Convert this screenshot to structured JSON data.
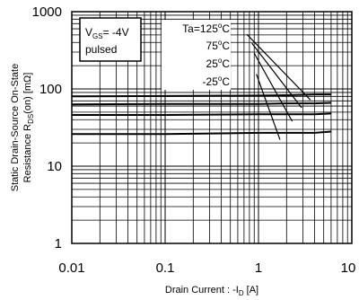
{
  "chart_data": {
    "type": "line",
    "x_scale": "log",
    "y_scale": "log",
    "xlim": [
      0.01,
      10
    ],
    "ylim": [
      1,
      1000
    ],
    "grid": true,
    "x_ticks": [
      "0.01",
      "0.1",
      "1",
      "10"
    ],
    "y_ticks": [
      "1",
      "10",
      "100",
      "1000"
    ],
    "xlabel": {
      "main": "Drain Current : -I",
      "sub": "D",
      "unit": " [A]"
    },
    "ylabel": {
      "line1": "Static Drain-Source On-State",
      "line2_main": "Resistance  R",
      "line2_sub": "DS",
      "line2_rest": "(on) [mΩ]"
    },
    "condition_box": {
      "line1_main": "V",
      "line1_sub": "GS",
      "line1_rest": "= -4V",
      "line2": "pulsed"
    },
    "series": [
      {
        "name": "Ta=125°C",
        "label_main": "Ta=125",
        "label_deg": "o",
        "label_unit": "C",
        "x": [
          0.01,
          0.1,
          1,
          2,
          4,
          6
        ],
        "y": [
          80,
          81,
          82,
          83,
          85,
          85
        ]
      },
      {
        "name": "75°C",
        "label_main": "75",
        "label_deg": "o",
        "label_unit": "C",
        "x": [
          0.01,
          0.1,
          1,
          2,
          4,
          6
        ],
        "y": [
          63,
          64,
          64,
          65,
          65,
          66
        ]
      },
      {
        "name": "25°C",
        "label_main": "25",
        "label_deg": "o",
        "label_unit": "C",
        "x": [
          0.01,
          0.1,
          1,
          2,
          4,
          6
        ],
        "y": [
          46,
          46,
          47,
          47,
          47,
          48
        ]
      },
      {
        "name": "-25°C",
        "label_main": "-25",
        "label_deg": "o",
        "label_unit": "C",
        "x": [
          0.01,
          0.1,
          1,
          2,
          4,
          6
        ],
        "y": [
          26,
          26,
          27,
          27,
          27,
          28
        ]
      }
    ],
    "limit_lines": [
      {
        "x": [
          0.75,
          3.6
        ],
        "y": [
          510,
          72
        ]
      },
      {
        "x": [
          0.85,
          2.9
        ],
        "y": [
          390,
          57
        ]
      },
      {
        "x": [
          0.9,
          2.3
        ],
        "y": [
          290,
          38
        ]
      },
      {
        "x": [
          0.95,
          1.7
        ],
        "y": [
          155,
          22
        ]
      }
    ]
  }
}
